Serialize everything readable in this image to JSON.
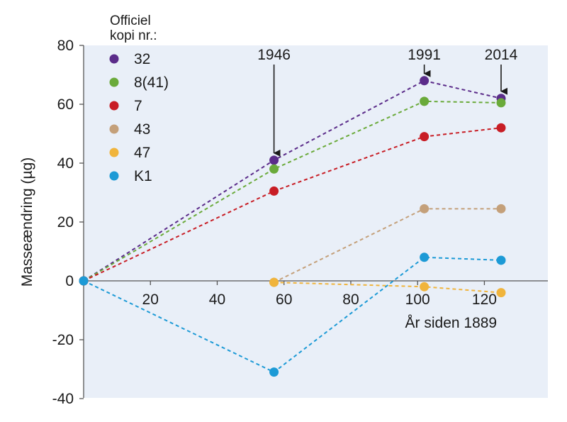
{
  "chart_data": {
    "type": "line",
    "xlabel": "År siden 1889",
    "ylabel": "Masseændring (µg)",
    "legend_title": [
      "Officiel",
      "kopi nr.:"
    ],
    "legend_position": "top-left",
    "xlim": [
      0,
      140
    ],
    "ylim": [
      -40,
      80
    ],
    "x_ticks": [
      20,
      40,
      60,
      80,
      100,
      120
    ],
    "y_ticks": [
      -40,
      -20,
      0,
      20,
      40,
      60,
      80
    ],
    "grid": false,
    "background": "#e9eff8",
    "annotations": [
      {
        "label": "1946",
        "x": 57
      },
      {
        "label": "1991",
        "x": 102
      },
      {
        "label": "2014",
        "x": 125
      }
    ],
    "series": [
      {
        "name": "32",
        "color": "#5b2c8a",
        "x": [
          0,
          57,
          102,
          125
        ],
        "values": [
          0,
          41,
          68,
          62
        ]
      },
      {
        "name": "8(41)",
        "color": "#6aaa3a",
        "x": [
          0,
          57,
          102,
          125
        ],
        "values": [
          0,
          38,
          61,
          60.5
        ]
      },
      {
        "name": "7",
        "color": "#c81d25",
        "x": [
          0,
          57,
          102,
          125
        ],
        "values": [
          0,
          30.5,
          49,
          52
        ]
      },
      {
        "name": "43",
        "color": "#c4a07a",
        "x": [
          57,
          102,
          125
        ],
        "values": [
          -0.5,
          24.5,
          24.5
        ]
      },
      {
        "name": "47",
        "color": "#f0b43c",
        "x": [
          57,
          102,
          125
        ],
        "values": [
          -0.5,
          -2,
          -4
        ]
      },
      {
        "name": "K1",
        "color": "#1c9ad6",
        "x": [
          0,
          57,
          102,
          125
        ],
        "values": [
          0,
          -31,
          8,
          7
        ]
      }
    ]
  }
}
